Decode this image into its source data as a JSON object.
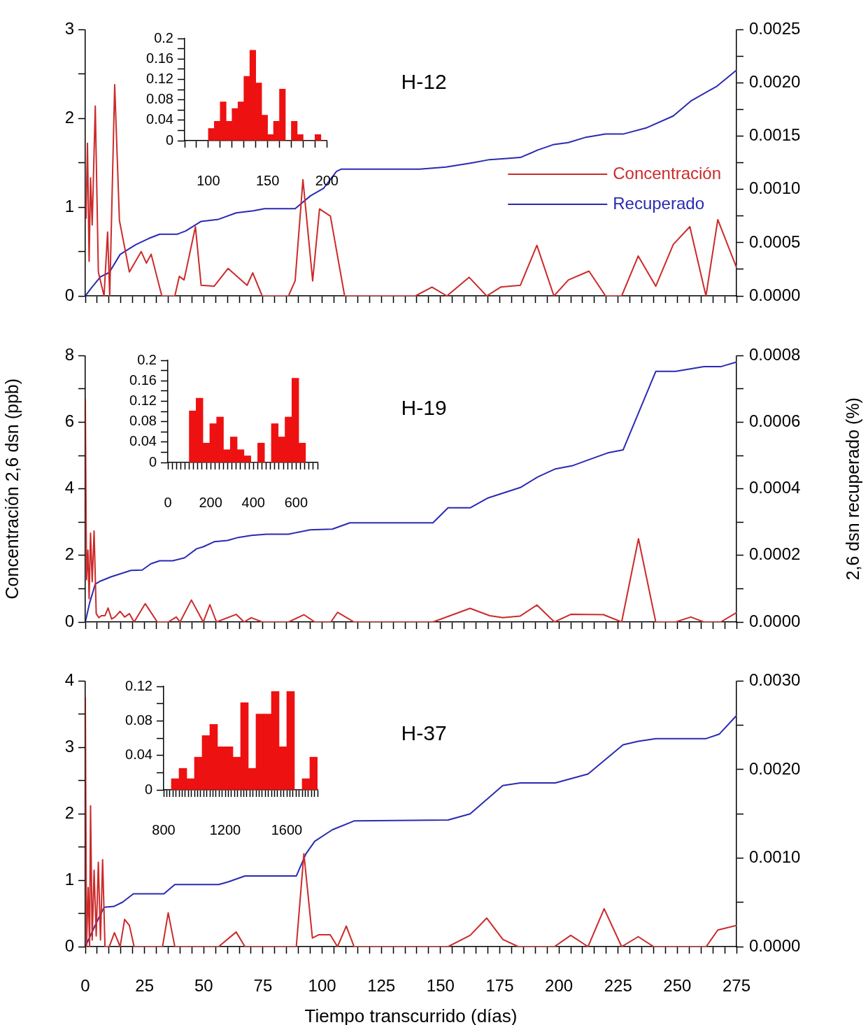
{
  "chart_data": [
    {
      "type": "line",
      "title": "H-12",
      "legend": "right",
      "grid": false,
      "tick_labels": "y",
      "xlim": [
        0,
        275
      ],
      "xticks": [
        0,
        {
          "value": 5,
          "label": null
        },
        {
          "value": 10,
          "label": null
        },
        {
          "value": 15,
          "label": null
        },
        {
          "value": 20,
          "label": null
        },
        25,
        {
          "value": 30,
          "label": null
        },
        {
          "value": 35,
          "label": null
        },
        {
          "value": 40,
          "label": null
        },
        {
          "value": 45,
          "label": null
        },
        50,
        {
          "value": 55,
          "label": null
        },
        {
          "value": 60,
          "label": null
        },
        {
          "value": 65,
          "label": null
        },
        {
          "value": 70,
          "label": null
        },
        75,
        {
          "value": 80,
          "label": null
        },
        {
          "value": 85,
          "label": null
        },
        {
          "value": 90,
          "label": null
        },
        {
          "value": 95,
          "label": null
        },
        100,
        {
          "value": 105,
          "label": null
        },
        {
          "value": 110,
          "label": null
        },
        {
          "value": 115,
          "label": null
        },
        {
          "value": 120,
          "label": null
        },
        125,
        {
          "value": 130,
          "label": null
        },
        {
          "value": 135,
          "label": null
        },
        {
          "value": 140,
          "label": null
        },
        {
          "value": 145,
          "label": null
        },
        150,
        {
          "value": 155,
          "label": null
        },
        {
          "value": 160,
          "label": null
        },
        {
          "value": 165,
          "label": null
        },
        {
          "value": 170,
          "label": null
        },
        175,
        {
          "value": 180,
          "label": null
        },
        {
          "value": 185,
          "label": null
        },
        {
          "value": 190,
          "label": null
        },
        {
          "value": 195,
          "label": null
        },
        200,
        {
          "value": 205,
          "label": null
        },
        {
          "value": 210,
          "label": null
        },
        {
          "value": 215,
          "label": null
        },
        {
          "value": 220,
          "label": null
        },
        225,
        {
          "value": 230,
          "label": null
        },
        {
          "value": 235,
          "label": null
        },
        {
          "value": 240,
          "label": null
        },
        {
          "value": 245,
          "label": null
        },
        250,
        {
          "value": 255,
          "label": null
        },
        {
          "value": 260,
          "label": null
        },
        {
          "value": 265,
          "label": null
        },
        {
          "value": 270,
          "label": null
        },
        275
      ],
      "ylim": [
        0,
        3
      ],
      "yticks": [
        0,
        {
          "value": 0.5,
          "label": null
        },
        1,
        {
          "value": 1.5,
          "label": null
        },
        2,
        {
          "value": 2.5,
          "label": null
        },
        3
      ],
      "y2lim": [
        0,
        0.0025
      ],
      "y2ticks": [
        {
          "value": 0,
          "label": "0.0000"
        },
        {
          "value": 0.00025,
          "label": null
        },
        {
          "value": 0.0005,
          "label": "0.0005"
        },
        {
          "value": 0.00075,
          "label": null
        },
        {
          "value": 0.001,
          "label": "0.0010"
        },
        {
          "value": 0.00125,
          "label": null
        },
        {
          "value": 0.0015,
          "label": "0.0015"
        },
        {
          "value": 0.00175,
          "label": null
        },
        {
          "value": 0.002,
          "label": "0.0020"
        },
        {
          "value": 0.00225,
          "label": null
        },
        {
          "value": 0.0025,
          "label": "0.0025"
        }
      ],
      "series": [
        {
          "name": "Concentración",
          "color": "#cc2a2a",
          "x": [
            0.3,
            0.9,
            1.6,
            2.2,
            2.9,
            4.2,
            5.5,
            7.9,
            9.4,
            10.3,
            12.4,
            14.4,
            18.6,
            23.6,
            25.8,
            27.8,
            32.3,
            37.8,
            39.7,
            41.7,
            46.5,
            48.9,
            54.4,
            60.3,
            68.3,
            70.7,
            74.7,
            85.8,
            88.6,
            91.9,
            96,
            98.9,
            103.5,
            109.5,
            139.4,
            146.4,
            152.7,
            162.1,
            169.5,
            175.4,
            183.7,
            190.7,
            197.9,
            204,
            212.7,
            219.7,
            226.5,
            233.5,
            240.9,
            248.3,
            255.3,
            262.1,
            267.1,
            275
          ],
          "values": [
            0.87,
            1.72,
            0.39,
            1.33,
            0.8,
            2.14,
            0.27,
            0,
            0.72,
            0,
            2.38,
            0.85,
            0.27,
            0.5,
            0.37,
            0.47,
            0,
            0,
            0.22,
            0.18,
            0.78,
            0.12,
            0.11,
            0.31,
            0.12,
            0.26,
            0,
            0,
            0.17,
            1.31,
            0.17,
            0.98,
            0.9,
            0,
            0,
            0.1,
            0,
            0.21,
            0,
            0.1,
            0.12,
            0.57,
            0,
            0.18,
            0.28,
            0,
            0,
            0.45,
            0.11,
            0.58,
            0.78,
            0,
            0.86,
            0.32
          ]
        },
        {
          "name": "Recuperado",
          "color": "#2a2ab4",
          "axis": "y2",
          "x": [
            0,
            2.7,
            6.4,
            10.1,
            14.7,
            21.2,
            26.8,
            31.4,
            38.8,
            42.4,
            48.9,
            56.3,
            63.7,
            71,
            75.7,
            88.6,
            95.1,
            100.6,
            106.1,
            108,
            141.2,
            152.3,
            163.4,
            170.7,
            178,
            183.7,
            191.1,
            197.5,
            204,
            211.4,
            219.7,
            227.1,
            237.2,
            248.3,
            255.7,
            266.8,
            275
          ],
          "values": [
            0,
            8e-05,
            0.00018,
            0.00022,
            0.00039,
            0.00048,
            0.00054,
            0.00058,
            0.00058,
            0.00061,
            0.0007,
            0.00072,
            0.00078,
            0.0008,
            0.00082,
            0.00082,
            0.00094,
            0.00101,
            0.00117,
            0.00119,
            0.00119,
            0.00121,
            0.00125,
            0.00128,
            0.00129,
            0.0013,
            0.00137,
            0.00142,
            0.00144,
            0.00149,
            0.00152,
            0.00152,
            0.00158,
            0.00169,
            0.00183,
            0.00197,
            0.00212
          ]
        }
      ]
    },
    {
      "type": "histogram",
      "grid": false,
      "color": "#ee1111",
      "bins": [
        100,
        105,
        110,
        115,
        120,
        125,
        130,
        135,
        140,
        145,
        150,
        155,
        160,
        165,
        170,
        175,
        180,
        185,
        190,
        195,
        200
      ],
      "values": [
        0.024,
        0.038,
        0.076,
        0.038,
        0.063,
        0.076,
        0.126,
        0.177,
        0.113,
        0.05,
        0.012,
        0.038,
        0.101,
        0,
        0.038,
        0.012,
        0,
        0,
        0.012,
        0
      ],
      "xlim": [
        80,
        200
      ],
      "xticks": [
        {
          "value": 80,
          "label": null
        },
        {
          "value": 90,
          "label": null
        },
        100,
        {
          "value": 110,
          "label": null
        },
        {
          "value": 120,
          "label": null
        },
        {
          "value": 130,
          "label": null
        },
        {
          "value": 140,
          "label": null
        },
        150,
        {
          "value": 160,
          "label": null
        },
        {
          "value": 170,
          "label": null
        },
        {
          "value": 180,
          "label": null
        },
        {
          "value": 190,
          "label": null
        },
        200
      ],
      "ylim": [
        0,
        0.2
      ],
      "yticks": [
        0,
        {
          "value": 0.02,
          "label": null
        },
        0.04,
        {
          "value": 0.06,
          "label": null
        },
        0.08,
        {
          "value": 0.1,
          "label": null
        },
        0.12,
        {
          "value": 0.14,
          "label": null
        },
        0.16,
        {
          "value": 0.18,
          "label": null
        },
        0.2
      ]
    },
    {
      "type": "line",
      "title": "H-19",
      "grid": false,
      "tick_labels": "y",
      "ylabel": "Concentración 2,6 dsn (ppb)",
      "y2label": "2,6 dsn recuperado (%)",
      "xlim": [
        0,
        275
      ],
      "xticks": [
        0,
        {
          "value": 5,
          "label": null
        },
        {
          "value": 10,
          "label": null
        },
        {
          "value": 15,
          "label": null
        },
        {
          "value": 20,
          "label": null
        },
        25,
        {
          "value": 30,
          "label": null
        },
        {
          "value": 35,
          "label": null
        },
        {
          "value": 40,
          "label": null
        },
        {
          "value": 45,
          "label": null
        },
        50,
        {
          "value": 55,
          "label": null
        },
        {
          "value": 60,
          "label": null
        },
        {
          "value": 65,
          "label": null
        },
        {
          "value": 70,
          "label": null
        },
        75,
        {
          "value": 80,
          "label": null
        },
        {
          "value": 85,
          "label": null
        },
        {
          "value": 90,
          "label": null
        },
        {
          "value": 95,
          "label": null
        },
        100,
        {
          "value": 105,
          "label": null
        },
        {
          "value": 110,
          "label": null
        },
        {
          "value": 115,
          "label": null
        },
        {
          "value": 120,
          "label": null
        },
        125,
        {
          "value": 130,
          "label": null
        },
        {
          "value": 135,
          "label": null
        },
        {
          "value": 140,
          "label": null
        },
        {
          "value": 145,
          "label": null
        },
        150,
        {
          "value": 155,
          "label": null
        },
        {
          "value": 160,
          "label": null
        },
        {
          "value": 165,
          "label": null
        },
        {
          "value": 170,
          "label": null
        },
        175,
        {
          "value": 180,
          "label": null
        },
        {
          "value": 185,
          "label": null
        },
        {
          "value": 190,
          "label": null
        },
        {
          "value": 195,
          "label": null
        },
        200,
        {
          "value": 205,
          "label": null
        },
        {
          "value": 210,
          "label": null
        },
        {
          "value": 215,
          "label": null
        },
        {
          "value": 220,
          "label": null
        },
        225,
        {
          "value": 230,
          "label": null
        },
        {
          "value": 235,
          "label": null
        },
        {
          "value": 240,
          "label": null
        },
        {
          "value": 245,
          "label": null
        },
        250,
        {
          "value": 255,
          "label": null
        },
        {
          "value": 260,
          "label": null
        },
        {
          "value": 265,
          "label": null
        },
        {
          "value": 270,
          "label": null
        },
        275
      ],
      "ylim": [
        0,
        8
      ],
      "yticks": [
        0,
        {
          "value": 1,
          "label": null
        },
        2,
        {
          "value": 3,
          "label": null
        },
        4,
        {
          "value": 5,
          "label": null
        },
        6,
        {
          "value": 7,
          "label": null
        },
        8
      ],
      "y2lim": [
        0,
        0.0008
      ],
      "y2ticks": [
        {
          "value": 0,
          "label": "0.0000"
        },
        {
          "value": 0.0001,
          "label": null
        },
        {
          "value": 0.0002,
          "label": "0.0002"
        },
        {
          "value": 0.0003,
          "label": null
        },
        {
          "value": 0.0004,
          "label": "0.0004"
        },
        {
          "value": 0.0005,
          "label": null
        },
        {
          "value": 0.0006,
          "label": "0.0006"
        },
        {
          "value": 0.0007,
          "label": null
        },
        {
          "value": 0.0008,
          "label": "0.0008"
        }
      ],
      "series": [
        {
          "color": "#cc2a2a",
          "x": [
            0,
            0.5,
            1.1,
            1.6,
            2.2,
            2.9,
            3.7,
            4.6,
            5.7,
            6.8,
            8.3,
            9.6,
            11.1,
            12.5,
            14.7,
            16.6,
            18.6,
            20.6,
            25.3,
            30.4,
            35,
            38.4,
            40,
            44.8,
            49.8,
            52.6,
            55.4,
            63.7,
            67,
            70.1,
            74.7,
            85.8,
            92.3,
            96.9,
            103.7,
            106.5,
            113.5,
            146.8,
            162.5,
            170.8,
            176.3,
            183.7,
            190.7,
            198.1,
            205,
            218.8,
            226.5,
            233.6,
            240.9,
            249.3,
            255.7,
            261.2,
            268.3,
            275
          ],
          "values": [
            6.7,
            1.27,
            2.16,
            0.7,
            2.67,
            1.21,
            2.73,
            0.25,
            0.13,
            0.19,
            0.19,
            0.42,
            0.09,
            0.15,
            0.32,
            0.15,
            0.25,
            0,
            0.55,
            0,
            0,
            0.15,
            0,
            0.66,
            0,
            0.52,
            0,
            0.23,
            0,
            0.13,
            0,
            0,
            0.22,
            0,
            0,
            0.29,
            0,
            0,
            0.41,
            0.19,
            0.13,
            0.18,
            0.51,
            0,
            0.23,
            0.22,
            0,
            2.5,
            0,
            0,
            0.15,
            0,
            0,
            0.28
          ]
        },
        {
          "color": "#2a2ab4",
          "axis": "y2",
          "x": [
            0,
            1.8,
            4.2,
            6.4,
            11,
            19.3,
            24,
            27.7,
            31.4,
            36.9,
            41.9,
            47,
            49.8,
            54.4,
            60,
            64.6,
            70.1,
            76.6,
            85.8,
            95,
            104.3,
            111.7,
            146.8,
            153.2,
            162.5,
            169.8,
            183.7,
            191.1,
            198.5,
            205.9,
            213.2,
            220.6,
            227.1,
            240.9,
            249.3,
            261.2,
            268.3,
            275
          ],
          "values": [
            0,
            5.7e-05,
            0.000114,
            0.000123,
            0.000136,
            0.000155,
            0.000156,
            0.000175,
            0.000184,
            0.000184,
            0.000193,
            0.00022,
            0.000226,
            0.000241,
            0.000245,
            0.000254,
            0.00026,
            0.000264,
            0.000264,
            0.000277,
            0.000279,
            0.000298,
            0.000298,
            0.000343,
            0.000343,
            0.000372,
            0.000404,
            0.000436,
            0.00046,
            0.00047,
            0.000489,
            0.000508,
            0.000517,
            0.000753,
            0.000753,
            0.000767,
            0.000767,
            0.000781
          ]
        }
      ]
    },
    {
      "type": "histogram",
      "grid": false,
      "color": "#ee1111",
      "bins": [
        100,
        132,
        164,
        196,
        228,
        260,
        292,
        324,
        356,
        388,
        420,
        452,
        484,
        516,
        548,
        580,
        612,
        644
      ],
      "values": [
        0.101,
        0.126,
        0.038,
        0.076,
        0.089,
        0.025,
        0.05,
        0.025,
        0.013,
        0,
        0.038,
        0,
        0.076,
        0.05,
        0.089,
        0.165,
        0.038
      ],
      "xlim": [
        0,
        700
      ],
      "xticks": [
        0,
        {
          "value": 20,
          "label": null
        },
        {
          "value": 40,
          "label": null
        },
        {
          "value": 60,
          "label": null
        },
        {
          "value": 80,
          "label": null
        },
        {
          "value": 100,
          "label": null
        },
        {
          "value": 120,
          "label": null
        },
        {
          "value": 140,
          "label": null
        },
        {
          "value": 160,
          "label": null
        },
        {
          "value": 180,
          "label": null
        },
        200,
        {
          "value": 220,
          "label": null
        },
        {
          "value": 240,
          "label": null
        },
        {
          "value": 260,
          "label": null
        },
        {
          "value": 280,
          "label": null
        },
        {
          "value": 300,
          "label": null
        },
        {
          "value": 320,
          "label": null
        },
        {
          "value": 340,
          "label": null
        },
        {
          "value": 360,
          "label": null
        },
        {
          "value": 380,
          "label": null
        },
        400,
        {
          "value": 420,
          "label": null
        },
        {
          "value": 440,
          "label": null
        },
        {
          "value": 460,
          "label": null
        },
        {
          "value": 480,
          "label": null
        },
        {
          "value": 500,
          "label": null
        },
        {
          "value": 520,
          "label": null
        },
        {
          "value": 540,
          "label": null
        },
        {
          "value": 560,
          "label": null
        },
        {
          "value": 580,
          "label": null
        },
        600,
        {
          "value": 620,
          "label": null
        },
        {
          "value": 640,
          "label": null
        },
        {
          "value": 660,
          "label": null
        },
        {
          "value": 680,
          "label": null
        },
        {
          "value": 700,
          "label": null
        }
      ],
      "ylim": [
        0,
        0.2
      ],
      "yticks": [
        0,
        {
          "value": 0.02,
          "label": null
        },
        0.04,
        {
          "value": 0.06,
          "label": null
        },
        0.08,
        {
          "value": 0.1,
          "label": null
        },
        0.12,
        {
          "value": 0.14,
          "label": null
        },
        0.16,
        {
          "value": 0.18,
          "label": null
        },
        0.2
      ]
    },
    {
      "type": "line",
      "title": "H-37",
      "grid": false,
      "xlabel": "Tiempo transcurrido (días)",
      "xlim": [
        0,
        275
      ],
      "xticks": [
        0,
        {
          "value": 5,
          "label": null
        },
        {
          "value": 10,
          "label": null
        },
        {
          "value": 15,
          "label": null
        },
        {
          "value": 20,
          "label": null
        },
        25,
        {
          "value": 30,
          "label": null
        },
        {
          "value": 35,
          "label": null
        },
        {
          "value": 40,
          "label": null
        },
        {
          "value": 45,
          "label": null
        },
        50,
        {
          "value": 55,
          "label": null
        },
        {
          "value": 60,
          "label": null
        },
        {
          "value": 65,
          "label": null
        },
        {
          "value": 70,
          "label": null
        },
        75,
        {
          "value": 80,
          "label": null
        },
        {
          "value": 85,
          "label": null
        },
        {
          "value": 90,
          "label": null
        },
        {
          "value": 95,
          "label": null
        },
        100,
        {
          "value": 105,
          "label": null
        },
        {
          "value": 110,
          "label": null
        },
        {
          "value": 115,
          "label": null
        },
        {
          "value": 120,
          "label": null
        },
        125,
        {
          "value": 130,
          "label": null
        },
        {
          "value": 135,
          "label": null
        },
        {
          "value": 140,
          "label": null
        },
        {
          "value": 145,
          "label": null
        },
        150,
        {
          "value": 155,
          "label": null
        },
        {
          "value": 160,
          "label": null
        },
        {
          "value": 165,
          "label": null
        },
        {
          "value": 170,
          "label": null
        },
        175,
        {
          "value": 180,
          "label": null
        },
        {
          "value": 185,
          "label": null
        },
        {
          "value": 190,
          "label": null
        },
        {
          "value": 195,
          "label": null
        },
        200,
        {
          "value": 205,
          "label": null
        },
        {
          "value": 210,
          "label": null
        },
        {
          "value": 215,
          "label": null
        },
        {
          "value": 220,
          "label": null
        },
        225,
        {
          "value": 230,
          "label": null
        },
        {
          "value": 235,
          "label": null
        },
        {
          "value": 240,
          "label": null
        },
        {
          "value": 245,
          "label": null
        },
        250,
        {
          "value": 255,
          "label": null
        },
        {
          "value": 260,
          "label": null
        },
        {
          "value": 265,
          "label": null
        },
        {
          "value": 270,
          "label": null
        },
        275
      ],
      "ylim": [
        0,
        4
      ],
      "yticks": [
        0,
        {
          "value": 0.5,
          "label": null
        },
        1,
        {
          "value": 1.5,
          "label": null
        },
        2,
        {
          "value": 2.5,
          "label": null
        },
        3,
        {
          "value": 3.5,
          "label": null
        },
        4
      ],
      "y2lim": [
        0,
        0.003
      ],
      "y2ticks": [
        {
          "value": 0,
          "label": "0.0000"
        },
        {
          "value": 0.0005,
          "label": null
        },
        {
          "value": 0.001,
          "label": "0.0010"
        },
        {
          "value": 0.0015,
          "label": null
        },
        {
          "value": 0.002,
          "label": "0.0020"
        },
        {
          "value": 0.0025,
          "label": null
        },
        {
          "value": 0.003,
          "label": "0.0030"
        }
      ],
      "series": [
        {
          "color": "#cc2a2a",
          "x": [
            0,
            0.5,
            1.2,
            1.8,
            2.2,
            2.9,
            3.7,
            4.6,
            5.5,
            6.4,
            7.3,
            8.3,
            10.1,
            12.3,
            14.7,
            16.6,
            18.6,
            20.6,
            32.6,
            35,
            37.8,
            56.3,
            63.7,
            67.4,
            89.1,
            92.3,
            95.9,
            98.7,
            103.4,
            106.5,
            110.2,
            113.5,
            153.2,
            162.5,
            169.5,
            176.3,
            182.8,
            198.1,
            205,
            212.3,
            219.1,
            226.5,
            233.5,
            240,
            262.2,
            267.1,
            275
          ],
          "values": [
            3.76,
            0,
            0.89,
            0,
            2.12,
            0.1,
            1.15,
            0.16,
            1.27,
            0.1,
            1.31,
            0,
            0,
            0.21,
            0,
            0.41,
            0.32,
            0,
            0,
            0.51,
            0,
            0,
            0.22,
            0,
            0,
            1.4,
            0.13,
            0.18,
            0.18,
            0,
            0.31,
            0,
            0,
            0.17,
            0.43,
            0.11,
            0,
            0,
            0.17,
            0,
            0.57,
            0,
            0.15,
            0,
            0,
            0.25,
            0.32
          ]
        },
        {
          "color": "#2a2ab4",
          "axis": "y2",
          "x": [
            0,
            3.7,
            7.9,
            12,
            15.7,
            20.3,
            33.2,
            37.8,
            56.3,
            60.3,
            67.4,
            89.1,
            93.2,
            96.9,
            104.3,
            113.5,
            153.2,
            162.5,
            176.3,
            183.7,
            198.5,
            212.3,
            227.1,
            233.5,
            240.9,
            262.2,
            267.7,
            275
          ],
          "values": [
            0,
            0.000215,
            0.000444,
            0.000454,
            0.000502,
            0.000597,
            0.000597,
            0.000702,
            0.000702,
            0.000731,
            0.000798,
            0.000798,
            0.00105,
            0.00119,
            0.00132,
            0.00142,
            0.00143,
            0.0015,
            0.00182,
            0.00185,
            0.00185,
            0.00195,
            0.00228,
            0.00232,
            0.00235,
            0.00235,
            0.0024,
            0.00261
          ]
        }
      ]
    },
    {
      "type": "histogram",
      "grid": false,
      "color": "#ee1111",
      "bins": [
        850,
        900,
        950,
        1000,
        1050,
        1100,
        1150,
        1200,
        1250,
        1300,
        1350,
        1400,
        1450,
        1500,
        1550,
        1600,
        1650,
        1700,
        1750,
        1800
      ],
      "values": [
        0.013,
        0.025,
        0.013,
        0.038,
        0.063,
        0.076,
        0.05,
        0.05,
        0.038,
        0.101,
        0.025,
        0.088,
        0.088,
        0.114,
        0.05,
        0.114,
        0,
        0.013,
        0.038
      ],
      "xlim": [
        800,
        1800
      ],
      "xticks": [
        800,
        {
          "value": 820,
          "label": null
        },
        {
          "value": 840,
          "label": null
        },
        {
          "value": 860,
          "label": null
        },
        {
          "value": 880,
          "label": null
        },
        {
          "value": 900,
          "label": null
        },
        {
          "value": 920,
          "label": null
        },
        {
          "value": 940,
          "label": null
        },
        {
          "value": 960,
          "label": null
        },
        {
          "value": 980,
          "label": null
        },
        {
          "value": 1000,
          "label": null
        },
        {
          "value": 1020,
          "label": null
        },
        {
          "value": 1040,
          "label": null
        },
        {
          "value": 1060,
          "label": null
        },
        {
          "value": 1080,
          "label": null
        },
        {
          "value": 1100,
          "label": null
        },
        {
          "value": 1120,
          "label": null
        },
        {
          "value": 1140,
          "label": null
        },
        {
          "value": 1160,
          "label": null
        },
        {
          "value": 1180,
          "label": null
        },
        1200,
        {
          "value": 1220,
          "label": null
        },
        {
          "value": 1240,
          "label": null
        },
        {
          "value": 1260,
          "label": null
        },
        {
          "value": 1280,
          "label": null
        },
        {
          "value": 1300,
          "label": null
        },
        {
          "value": 1320,
          "label": null
        },
        {
          "value": 1340,
          "label": null
        },
        {
          "value": 1360,
          "label": null
        },
        {
          "value": 1380,
          "label": null
        },
        {
          "value": 1400,
          "label": null
        },
        {
          "value": 1420,
          "label": null
        },
        {
          "value": 1440,
          "label": null
        },
        {
          "value": 1460,
          "label": null
        },
        {
          "value": 1480,
          "label": null
        },
        {
          "value": 1500,
          "label": null
        },
        {
          "value": 1520,
          "label": null
        },
        {
          "value": 1540,
          "label": null
        },
        {
          "value": 1560,
          "label": null
        },
        {
          "value": 1580,
          "label": null
        },
        1600,
        {
          "value": 1620,
          "label": null
        },
        {
          "value": 1640,
          "label": null
        },
        {
          "value": 1660,
          "label": null
        },
        {
          "value": 1680,
          "label": null
        },
        {
          "value": 1700,
          "label": null
        },
        {
          "value": 1720,
          "label": null
        },
        {
          "value": 1740,
          "label": null
        },
        {
          "value": 1760,
          "label": null
        },
        {
          "value": 1780,
          "label": null
        },
        {
          "value": 1800,
          "label": null
        }
      ],
      "ylim": [
        0,
        0.12
      ],
      "yticks": [
        0,
        {
          "value": 0.02,
          "label": null
        },
        0.04,
        {
          "value": 0.06,
          "label": null
        },
        0.08,
        {
          "value": 0.1,
          "label": null
        },
        0.12
      ]
    }
  ]
}
